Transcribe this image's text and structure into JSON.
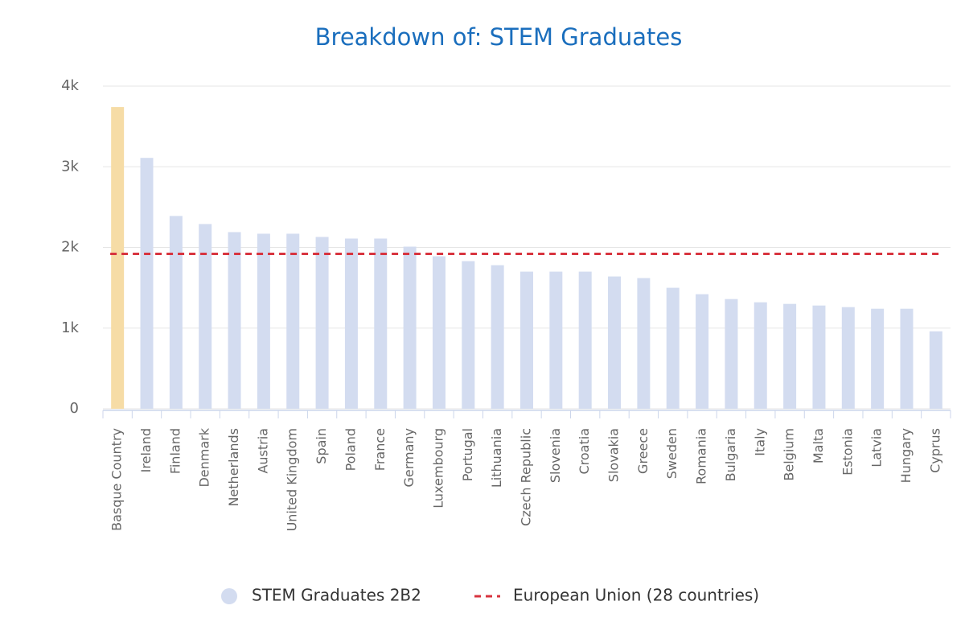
{
  "chart_data": {
    "type": "bar",
    "title": "Breakdown of: STEM Graduates",
    "categories": [
      "Basque Country",
      "Ireland",
      "Finland",
      "Denmark",
      "Netherlands",
      "Austria",
      "United Kingdom",
      "Spain",
      "Poland",
      "France",
      "Germany",
      "Luxembourg",
      "Portugal",
      "Lithuania",
      "Czech Republic",
      "Slovenia",
      "Croatia",
      "Slovakia",
      "Greece",
      "Sweden",
      "Romania",
      "Bulgaria",
      "Italy",
      "Belgium",
      "Malta",
      "Estonia",
      "Latvia",
      "Hungary",
      "Cyprus"
    ],
    "series": [
      {
        "name": "STEM Graduates 2B2",
        "color": "#d3dcf0",
        "colors": [
          "#f6dca6",
          "#d3dcf0",
          "#d3dcf0",
          "#d3dcf0",
          "#d3dcf0",
          "#d3dcf0",
          "#d3dcf0",
          "#d3dcf0",
          "#d3dcf0",
          "#d3dcf0",
          "#d3dcf0",
          "#d3dcf0",
          "#d3dcf0",
          "#d3dcf0",
          "#d3dcf0",
          "#d3dcf0",
          "#d3dcf0",
          "#d3dcf0",
          "#d3dcf0",
          "#d3dcf0",
          "#d3dcf0",
          "#d3dcf0",
          "#d3dcf0",
          "#d3dcf0",
          "#d3dcf0",
          "#d3dcf0",
          "#d3dcf0",
          "#d3dcf0",
          "#d3dcf0"
        ],
        "values": [
          3740,
          3110,
          2390,
          2290,
          2190,
          2170,
          2170,
          2130,
          2110,
          2110,
          2010,
          1890,
          1830,
          1780,
          1700,
          1700,
          1700,
          1640,
          1620,
          1500,
          1420,
          1360,
          1320,
          1300,
          1280,
          1260,
          1240,
          1240,
          960
        ]
      },
      {
        "name": "European Union (28 countries)",
        "color": "#d8343f",
        "type": "line",
        "value": 1920
      }
    ],
    "ylim": [
      0,
      4000
    ],
    "yticks": [
      0,
      {
        "value": 1000,
        "label": "1k"
      },
      {
        "value": 2000,
        "label": "2k"
      },
      {
        "value": 3000,
        "label": "3k"
      },
      {
        "value": 4000,
        "label": "4k"
      }
    ],
    "grid": true
  }
}
